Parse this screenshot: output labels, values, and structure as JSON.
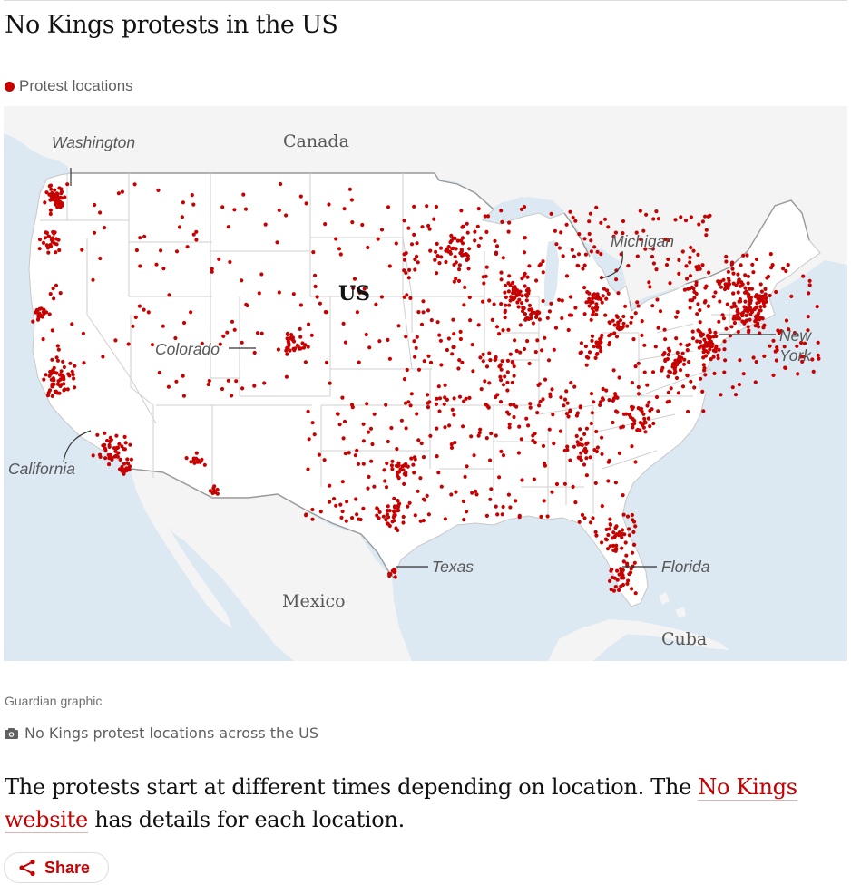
{
  "headline": "No Kings protests in the US",
  "legend": {
    "label": "Protest locations",
    "color": "#c70000"
  },
  "map": {
    "country_labels": {
      "canada": "Canada",
      "us": "US",
      "mexico": "Mexico",
      "cuba": "Cuba"
    },
    "state_labels": {
      "washington": "Washington",
      "colorado": "Colorado",
      "michigan": "Michigan",
      "new_york_line1": "New",
      "new_york_line2": "York",
      "california": "California",
      "texas": "Texas",
      "florida": "Florida"
    },
    "colors": {
      "water": "#dce8f2",
      "land": "#f6f6f6",
      "us_land": "#ffffff",
      "border": "#999999",
      "dot": "#c70000"
    }
  },
  "credit": "Guardian graphic",
  "caption": "No Kings protest locations across the US",
  "body": {
    "text_before": "The protests start at different times depending on location. The ",
    "link": "No Kings website",
    "text_after": " has details for each location."
  },
  "share": {
    "label": "Share",
    "icon": "share-icon"
  }
}
